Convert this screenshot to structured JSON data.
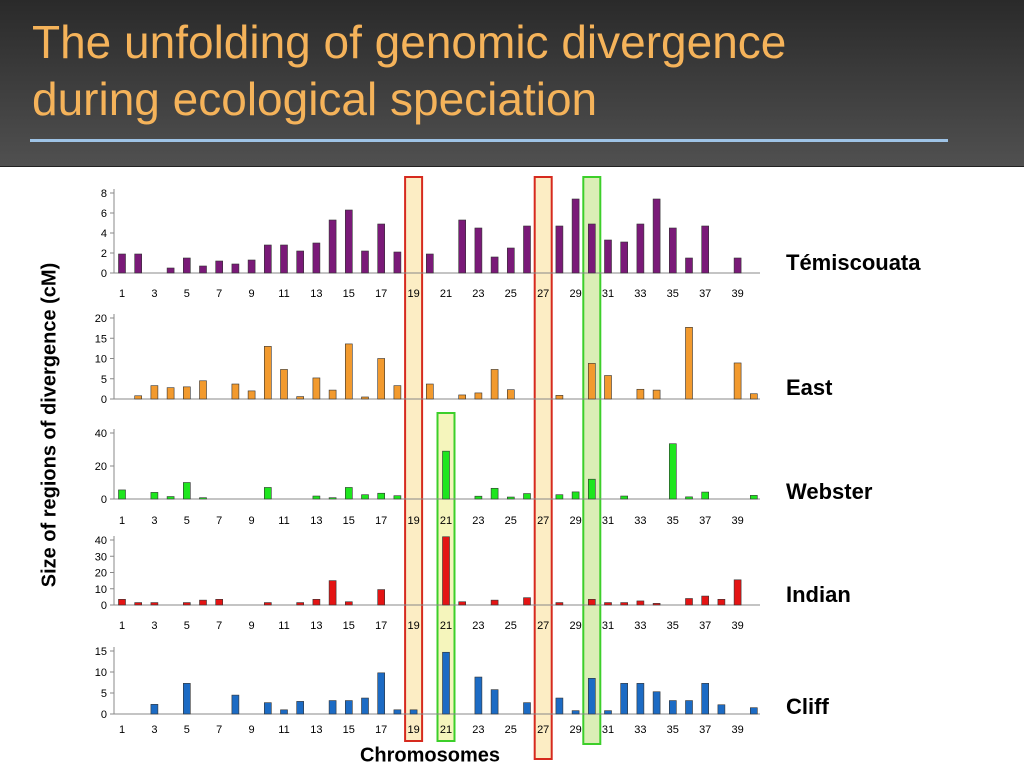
{
  "slide": {
    "title_line1": "The unfolding of genomic divergence",
    "title_line2": "during ecological speciation"
  },
  "chart_data": {
    "type": "bar",
    "ylabel": "Size of regions of divergence (cM)",
    "xlabel": "Chromosomes",
    "categories": [
      "1",
      "2",
      "3",
      "4",
      "5",
      "6",
      "7",
      "8",
      "9",
      "10",
      "11",
      "12",
      "13",
      "14",
      "15",
      "16",
      "17",
      "18",
      "19",
      "20",
      "21",
      "22",
      "23",
      "24",
      "25",
      "26",
      "27",
      "28",
      "29",
      "30",
      "31",
      "32",
      "33",
      "34",
      "35",
      "36",
      "37",
      "38",
      "39",
      "40"
    ],
    "x_tick_labels": [
      "1",
      "3",
      "5",
      "7",
      "9",
      "11",
      "13",
      "15",
      "17",
      "19",
      "21",
      "23",
      "25",
      "27",
      "29",
      "31",
      "33",
      "35",
      "37",
      "39"
    ],
    "highlights": [
      {
        "chromosome": 19,
        "outline": "#d62a1e",
        "fill": "#fbe7b0"
      },
      {
        "chromosome": 27,
        "outline": "#d62a1e",
        "fill": "#fbe7b0"
      },
      {
        "chromosome": 21,
        "outline": "#3ccf2a",
        "fill": "#f1f1a6"
      },
      {
        "chromosome": 30,
        "outline": "#3ccf2a",
        "fill": "#cfe89e"
      }
    ],
    "panels": [
      {
        "name": "Témiscouata",
        "color": "#7a1a78",
        "yticks": [
          0,
          2,
          4,
          6,
          8
        ],
        "ylim": [
          0,
          8
        ],
        "values": [
          1.9,
          1.9,
          0,
          0.5,
          1.5,
          0.7,
          1.2,
          0.9,
          1.3,
          2.8,
          2.8,
          2.2,
          3.0,
          5.3,
          6.3,
          2.2,
          4.9,
          2.1,
          0,
          1.9,
          0,
          5.3,
          4.5,
          1.6,
          2.5,
          4.7,
          0,
          4.7,
          7.4,
          4.9,
          3.3,
          3.1,
          4.9,
          7.4,
          4.5,
          1.5,
          4.7,
          0,
          1.5,
          0
        ]
      },
      {
        "name": "East",
        "color": "#f29a2e",
        "yticks": [
          0,
          5,
          10,
          15,
          20
        ],
        "ylim": [
          0,
          20
        ],
        "values": [
          0,
          0.8,
          3.3,
          2.8,
          3.0,
          4.5,
          0,
          3.7,
          2.0,
          13.0,
          7.3,
          0.6,
          5.2,
          2.2,
          13.6,
          0.5,
          10.0,
          3.3,
          0,
          3.7,
          0,
          1.0,
          1.5,
          7.3,
          2.3,
          0,
          0,
          0.9,
          0,
          8.8,
          5.8,
          0,
          2.4,
          2.2,
          0,
          17.7,
          0,
          0,
          8.9,
          1.3
        ]
      },
      {
        "name": "Webster",
        "color": "#1ee61e",
        "yticks": [
          0,
          20,
          40
        ],
        "ylim": [
          0,
          40
        ],
        "values": [
          5.5,
          0,
          4.0,
          1.5,
          10.0,
          0.8,
          0,
          0,
          0,
          7.0,
          0,
          0,
          1.8,
          0.8,
          7.0,
          2.6,
          3.5,
          2.0,
          0,
          0,
          29.0,
          0,
          1.7,
          6.5,
          1.2,
          3.3,
          0,
          2.6,
          4.3,
          12.0,
          0,
          1.8,
          0,
          0,
          33.5,
          1.3,
          4.2,
          0,
          0,
          2.2
        ]
      },
      {
        "name": "Indian",
        "color": "#e41414",
        "yticks": [
          0,
          10,
          20,
          30,
          40
        ],
        "ylim": [
          0,
          40
        ],
        "values": [
          3.5,
          1.5,
          1.5,
          0,
          1.5,
          3.0,
          3.5,
          0,
          0,
          1.5,
          0,
          1.5,
          3.5,
          15.0,
          2.0,
          0,
          9.5,
          0,
          0,
          0,
          42.0,
          2.0,
          0,
          3.0,
          0,
          4.5,
          0,
          1.5,
          0,
          3.5,
          1.5,
          1.5,
          2.5,
          1.0,
          0,
          4.0,
          5.5,
          3.5,
          15.5,
          0
        ]
      },
      {
        "name": "Cliff",
        "color": "#1c6bc4",
        "yticks": [
          0,
          5,
          10,
          15
        ],
        "ylim": [
          0,
          15
        ],
        "values": [
          0,
          0,
          2.3,
          0,
          7.3,
          0,
          0,
          4.5,
          0,
          2.7,
          1.0,
          3.0,
          0,
          3.2,
          3.2,
          3.8,
          9.8,
          1.0,
          1.0,
          0,
          14.7,
          0,
          8.8,
          5.8,
          0,
          2.7,
          0,
          3.8,
          0.8,
          8.5,
          0.8,
          7.3,
          7.3,
          5.3,
          3.2,
          3.2,
          7.3,
          2.2,
          0,
          1.5
        ]
      }
    ]
  }
}
